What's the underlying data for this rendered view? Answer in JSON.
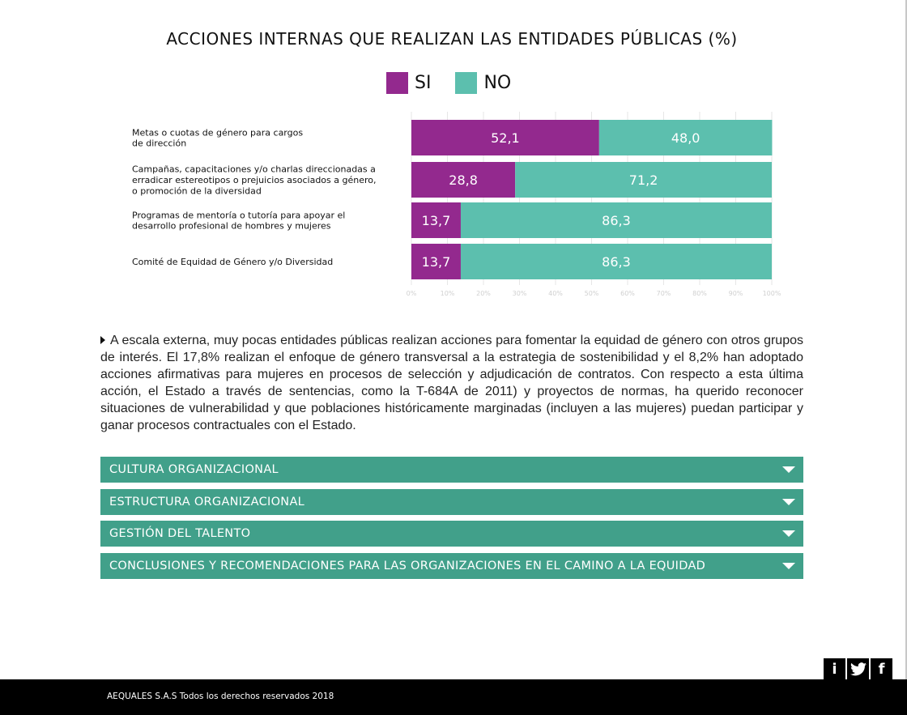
{
  "chart_data": {
    "type": "bar",
    "stacked": true,
    "orientation": "horizontal",
    "title": "ACCIONES INTERNAS QUE REALIZAN LAS ENTIDADES PÚBLICAS (%)",
    "categories": [
      [
        "Metas o cuotas de género para cargos",
        "de dirección"
      ],
      [
        "Campañas, capacitaciones y/o charlas direccionadas a",
        "erradicar estereotipos o prejuicios asociados a género,",
        "o promoción de la diversidad"
      ],
      [
        "Programas de mentoría o tutoría para apoyar el",
        "desarrollo profesional de hombres y mujeres"
      ],
      [
        "Comité de Equidad de Género y/o Diversidad"
      ]
    ],
    "series": [
      {
        "name": "SI",
        "values": [
          52.1,
          28.8,
          13.7,
          13.7
        ],
        "labels": [
          "52,1",
          "28,8",
          "13,7",
          "13,7"
        ],
        "color": "#93298e"
      },
      {
        "name": "NO",
        "values": [
          48.0,
          71.2,
          86.3,
          86.3
        ],
        "labels": [
          "48,0",
          "71,2",
          "86,3",
          "86,3"
        ],
        "color": "#5cbfae"
      }
    ],
    "xlim": [
      0,
      100
    ],
    "xticks": [
      "0%",
      "10%",
      "20%",
      "30%",
      "40%",
      "50%",
      "60%",
      "70%",
      "80%",
      "90%",
      "100%"
    ],
    "grid": true
  },
  "paragraph": "A escala externa, muy pocas entidades públicas realizan acciones para fomentar la equidad de género con otros grupos de interés. El 17,8% realizan el enfoque de género transversal a la estrategia de sostenibilidad y el 8,2% han adoptado acciones afirmativas para mujeres en procesos de selección y adjudicación de contratos. Con respecto a esta última acción, el Estado a través de sentencias, como la T-684A de 2011) y proyectos de normas, ha querido reconocer situaciones de vulnerabilidad y que poblaciones históricamente marginadas (incluyen a las mujeres) puedan participar y ganar procesos contractuales con el Estado.",
  "accordion": [
    {
      "label": "CULTURA ORGANIZACIONAL"
    },
    {
      "label": "ESTRUCTURA ORGANIZACIONAL"
    },
    {
      "label": "GESTIÓN DEL TALENTO"
    },
    {
      "label": "CONCLUSIONES Y RECOMENDACIONES PARA LAS ORGANIZACIONES EN EL CAMINO A LA EQUIDAD"
    }
  ],
  "social": {
    "info": "i",
    "twitter_icon": "twitter-icon",
    "facebook": "f"
  },
  "footer": {
    "text": "AEQUALES  S.A.S Todos los derechos reservados 2018"
  }
}
